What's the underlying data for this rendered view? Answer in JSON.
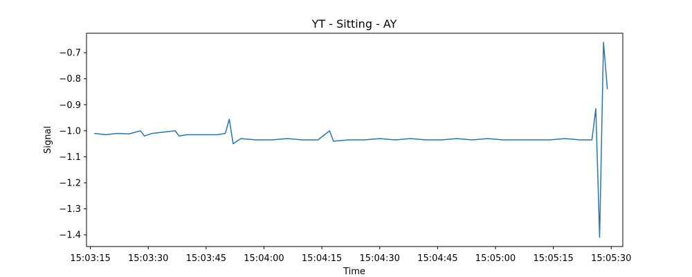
{
  "chart_data": {
    "type": "line",
    "title": "YT - Sitting - AY",
    "xlabel": "Time",
    "ylabel": "Signal",
    "x_ticks": [
      "15:03:15",
      "15:03:30",
      "15:03:45",
      "15:04:00",
      "15:04:15",
      "15:04:30",
      "15:04:45",
      "15:05:00",
      "15:05:15",
      "15:05:30"
    ],
    "y_ticks": [
      "−0.7",
      "−0.8",
      "−0.9",
      "−1.0",
      "−1.1",
      "−1.2",
      "−1.3",
      "−1.4"
    ],
    "xlim": [
      "15:03:14",
      "15:05:33"
    ],
    "ylim": [
      -1.445,
      -0.625
    ],
    "legend": "none",
    "grid": false,
    "line_color": "#1f77b4",
    "series": [
      {
        "x": [
          "15:03:16",
          "15:03:19",
          "15:03:22",
          "15:03:25",
          "15:03:28",
          "15:03:29",
          "15:03:31",
          "15:03:34",
          "15:03:37",
          "15:03:38",
          "15:03:40",
          "15:03:44",
          "15:03:48",
          "15:03:50",
          "15:03:51",
          "15:03:52",
          "15:03:54",
          "15:03:58",
          "15:04:02",
          "15:04:06",
          "15:04:10",
          "15:04:14",
          "15:04:17",
          "15:04:18",
          "15:04:22",
          "15:04:26",
          "15:04:30",
          "15:04:34",
          "15:04:38",
          "15:04:42",
          "15:04:46",
          "15:04:50",
          "15:04:54",
          "15:04:58",
          "15:05:02",
          "15:05:06",
          "15:05:10",
          "15:05:14",
          "15:05:18",
          "15:05:22",
          "15:05:25",
          "15:05:26",
          "15:05:27",
          "15:05:28",
          "15:05:29"
        ],
        "values": [
          -1.01,
          -1.015,
          -1.01,
          -1.012,
          -1.0,
          -1.02,
          -1.01,
          -1.005,
          -1.0,
          -1.02,
          -1.015,
          -1.015,
          -1.015,
          -1.01,
          -0.955,
          -1.05,
          -1.03,
          -1.035,
          -1.035,
          -1.03,
          -1.035,
          -1.035,
          -1.0,
          -1.04,
          -1.035,
          -1.035,
          -1.03,
          -1.035,
          -1.03,
          -1.035,
          -1.035,
          -1.03,
          -1.035,
          -1.03,
          -1.035,
          -1.035,
          -1.035,
          -1.035,
          -1.03,
          -1.035,
          -1.035,
          -0.915,
          -1.41,
          -0.66,
          -0.84
        ]
      }
    ]
  }
}
